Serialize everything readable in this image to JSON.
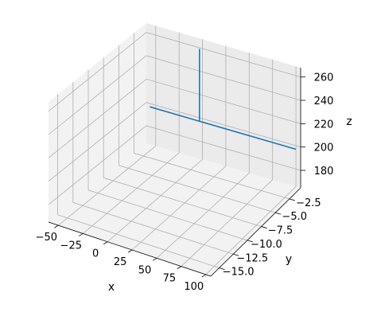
{
  "chart_data": {
    "type": "line3d",
    "title": "",
    "xlabel": "x",
    "ylabel": "y",
    "zlabel": "z",
    "xlim": [
      -60,
      105
    ],
    "ylim": [
      -16.5,
      -0.5
    ],
    "zlim": [
      165,
      268
    ],
    "xticks": [
      -50,
      -25,
      0,
      25,
      50,
      75,
      100
    ],
    "yticks": [
      -15.0,
      -12.5,
      -10.0,
      -7.5,
      -5.0,
      -2.5
    ],
    "zticks": [
      180,
      200,
      220,
      240,
      260
    ],
    "xtick_labels": [
      "−50",
      "−25",
      "0",
      "25",
      "50",
      "75",
      "100"
    ],
    "ytick_labels": [
      "−15.0",
      "−12.5",
      "−10.0",
      "−7.5",
      "−5.0",
      "−2.5"
    ],
    "ztick_labels": [
      "180",
      "200",
      "220",
      "240",
      "260"
    ],
    "grid": true,
    "series_color": "#1f77b4",
    "series": [
      {
        "segments": [
          [
            [
              -53,
              -1,
              200
            ],
            [
              103,
              -1,
              200
            ]
          ],
          [
            [
              0,
              -1,
              200
            ],
            [
              0,
              -1,
              262
            ]
          ]
        ]
      }
    ]
  }
}
